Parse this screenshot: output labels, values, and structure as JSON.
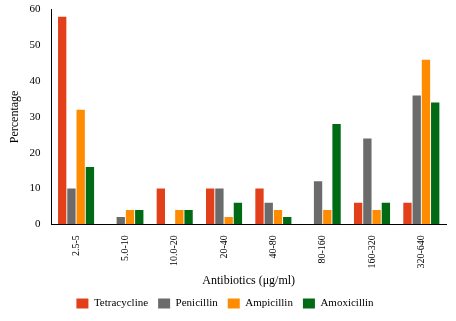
{
  "chart_data": {
    "type": "bar",
    "x_label": "Antibiotics (μg/ml)",
    "y_label": "Percentage",
    "categories": [
      "2.5-5",
      "5.0-10",
      "10.0-20",
      "20-40",
      "40-80",
      "80-160",
      "160-320",
      "320-640"
    ],
    "series": [
      {
        "name": "Tetracycline",
        "color": "#e2401b",
        "values": [
          58,
          0,
          10,
          10,
          10,
          0,
          6,
          6
        ]
      },
      {
        "name": "Penicillin",
        "color": "#6b6b6b",
        "values": [
          10,
          2,
          0,
          10,
          6,
          12,
          24,
          36
        ]
      },
      {
        "name": "Ampicillin",
        "color": "#ff8c00",
        "values": [
          32,
          4,
          4,
          2,
          4,
          4,
          4,
          46
        ]
      },
      {
        "name": "Amoxicillin",
        "color": "#006b14",
        "values": [
          16,
          4,
          4,
          6,
          2,
          28,
          6,
          34
        ]
      }
    ],
    "ylim": [
      0,
      60
    ],
    "yticks": [
      0,
      10,
      20,
      30,
      40,
      50,
      60
    ],
    "grid": false,
    "legend": "bottom"
  }
}
